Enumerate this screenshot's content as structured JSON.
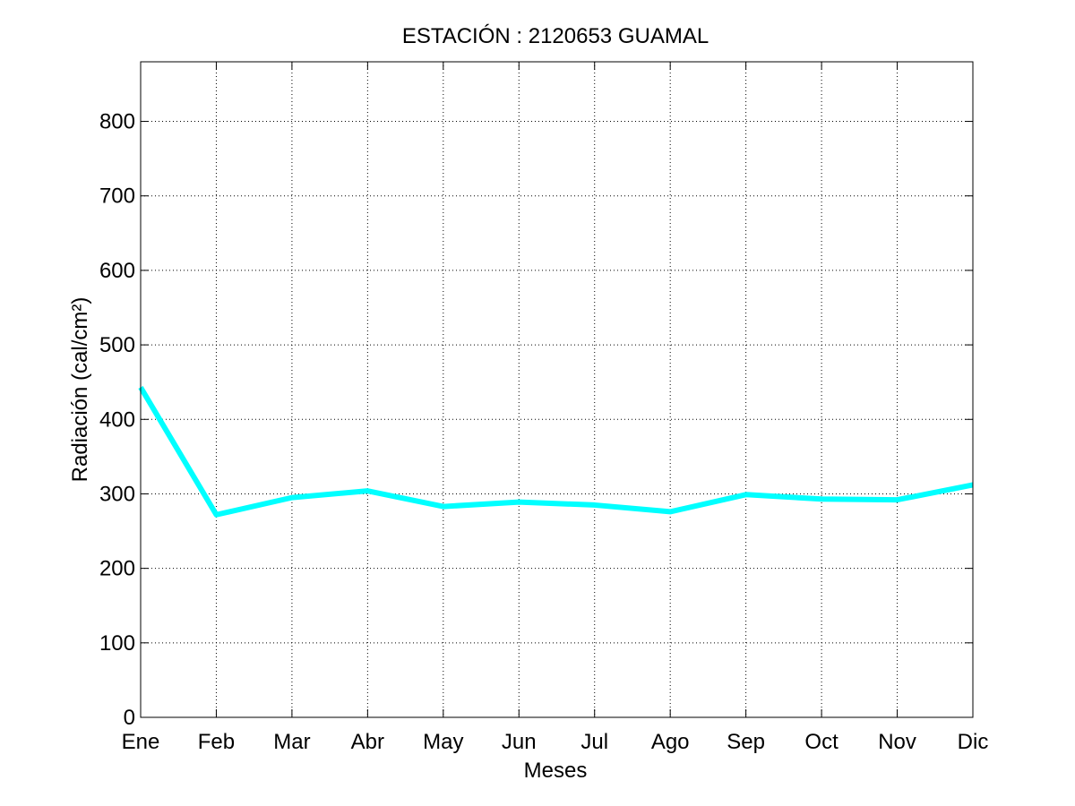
{
  "chart_data": {
    "type": "line",
    "title": "ESTACIÓN :  2120653  GUAMAL",
    "xlabel": "Meses",
    "ylabel": "Radiación (cal/cm²)",
    "categories": [
      "Ene",
      "Feb",
      "Mar",
      "Abr",
      "May",
      "Jun",
      "Jul",
      "Ago",
      "Sep",
      "Oct",
      "Nov",
      "Dic"
    ],
    "series": [
      {
        "values": [
          443,
          272,
          295,
          304,
          283,
          289,
          285,
          276,
          299,
          293,
          292,
          312
        ]
      }
    ],
    "ylim": [
      0,
      880
    ],
    "yticks": [
      0,
      100,
      200,
      300,
      400,
      500,
      600,
      700,
      800
    ],
    "grid": true,
    "colors": {
      "line": "#00ffff",
      "axes": "#000000",
      "grid": "#000000",
      "background": "#ffffff"
    }
  }
}
